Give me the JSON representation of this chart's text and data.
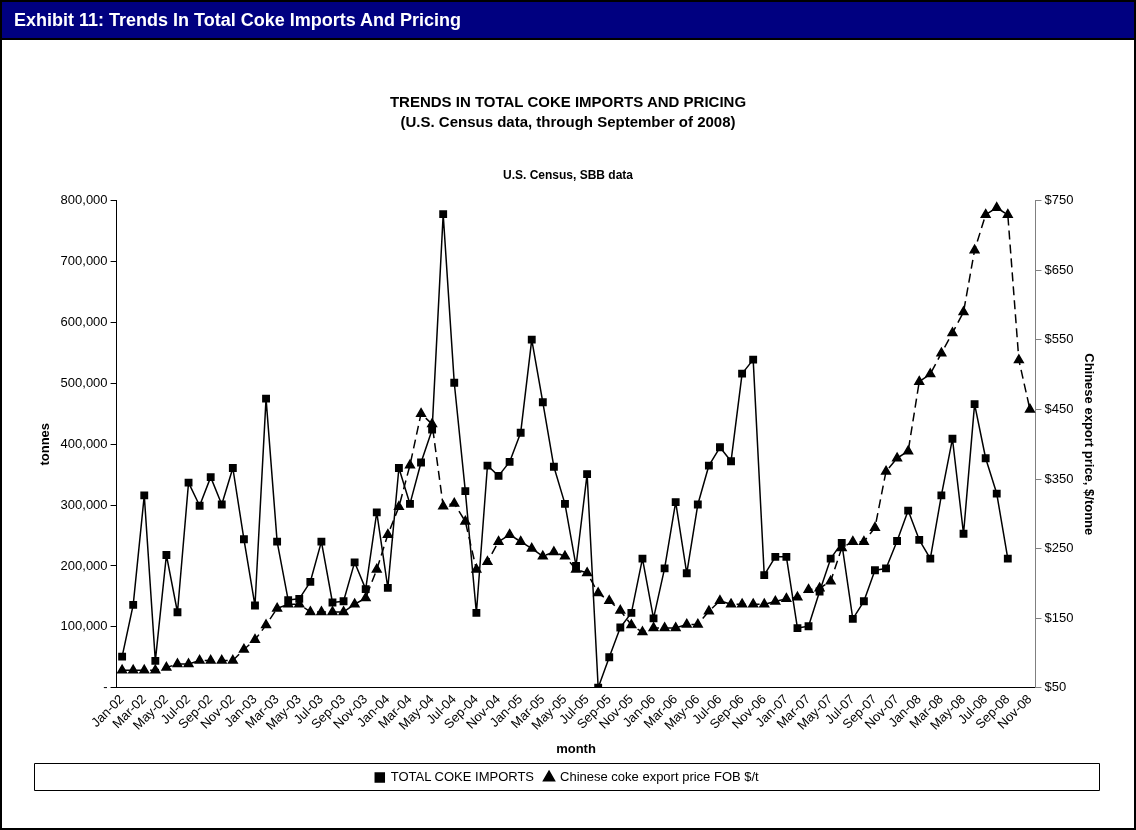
{
  "chart_data": {
    "type": "line",
    "title": "Exhibit 11: Trends In Total Coke Imports And Pricing",
    "subtitle": "TRENDS IN TOTAL COKE IMPORTS AND PRICING\n(U.S. Census data, through September of 2008)",
    "annotations": [
      "U.S. Census, SBB data"
    ],
    "xlabel": "month",
    "ylabel": "tonnes",
    "y2label": "Chinese export price, $/tonne",
    "categories": [
      "Jan-02",
      null,
      "Mar-02",
      null,
      "May-02",
      null,
      "Jul-02",
      null,
      "Sep-02",
      null,
      "Nov-02",
      null,
      "Jan-03",
      null,
      "Mar-03",
      null,
      "May-03",
      null,
      "Jul-03",
      null,
      "Sep-03",
      null,
      "Nov-03",
      null,
      "Jan-04",
      null,
      "Mar-04",
      null,
      "May-04",
      null,
      "Jul-04",
      null,
      "Sep-04",
      null,
      "Nov-04",
      null,
      "Jan-05",
      null,
      "Mar-05",
      null,
      "May-05",
      null,
      "Jul-05",
      null,
      "Sep-05",
      null,
      "Nov-05",
      null,
      "Jan-06",
      null,
      "Mar-06",
      null,
      "May-06",
      null,
      "Jul-06",
      null,
      "Sep-06",
      null,
      "Nov-06",
      null,
      "Jan-07",
      null,
      "Mar-07",
      null,
      "May-07",
      null,
      "Jul-07",
      null,
      "Sep-07",
      null,
      "Nov-07",
      null,
      "Jan-08",
      null,
      "Mar-08",
      null,
      "May-08",
      null,
      "Jul-08",
      null,
      "Sep-08",
      null,
      "Nov-08"
    ],
    "series": [
      {
        "name": "TOTAL COKE IMPORTS",
        "color": "#000000",
        "marker": "square",
        "line_style": "solid",
        "values": [
          51000,
          136000,
          316000,
          44000,
          218000,
          124000,
          337000,
          299000,
          346000,
          301000,
          361000,
          244000,
          135000,
          475000,
          240000,
          144000,
          146000,
          174000,
          240000,
          140000,
          142000,
          206000,
          162000,
          288000,
          164000,
          361000,
          302000,
          370000,
          424000,
          778000,
          501000,
          323000,
          123000,
          365000,
          348000,
          371000,
          419000,
          572000,
          469000,
          363000,
          302000,
          200000,
          351000,
          0,
          50000,
          99000,
          123000,
          212000,
          114000,
          196000,
          305000,
          188000,
          301000,
          365000,
          395000,
          372000,
          516000,
          539000,
          185000,
          215000,
          215000,
          98000,
          101000,
          158000,
          212000,
          238000,
          113000,
          142000,
          193000,
          196000,
          241000,
          291000,
          243000,
          212000,
          316000,
          409000,
          253000,
          466000,
          377000,
          319000,
          212000,
          null,
          null
        ]
      },
      {
        "name": "Chinese coke export price FOB $/t",
        "color": "#000000",
        "marker": "triangle",
        "line_style": "dashed",
        "axis": "y2",
        "values": [
          75,
          75,
          75,
          75,
          79,
          84,
          84,
          89,
          89,
          89,
          89,
          105,
          119,
          140,
          164,
          170,
          170,
          159,
          159,
          159,
          159,
          170,
          179,
          220,
          270,
          310,
          370,
          444,
          429,
          311,
          315,
          289,
          220,
          231,
          260,
          270,
          260,
          250,
          239,
          245,
          239,
          220,
          215,
          186,
          175,
          161,
          140,
          130,
          136,
          136,
          136,
          141,
          141,
          160,
          175,
          170,
          170,
          170,
          170,
          174,
          178,
          180,
          191,
          193,
          203,
          251,
          260,
          260,
          280,
          361,
          380,
          390,
          490,
          501,
          531,
          560,
          590,
          679,
          730,
          740,
          730,
          521,
          450
        ]
      }
    ],
    "ylim": [
      0,
      800000
    ],
    "yticks": [
      {
        "value": 0,
        "label": "-"
      },
      {
        "value": 100000,
        "label": "100,000"
      },
      {
        "value": 200000,
        "label": "200,000"
      },
      {
        "value": 300000,
        "label": "300,000"
      },
      {
        "value": 400000,
        "label": "400,000"
      },
      {
        "value": 500000,
        "label": "500,000"
      },
      {
        "value": 600000,
        "label": "600,000"
      },
      {
        "value": 700000,
        "label": "700,000"
      },
      {
        "value": 800000,
        "label": "800,000"
      }
    ],
    "y2lim": [
      50,
      750
    ],
    "y2ticks": [
      {
        "value": 50,
        "label": "$50"
      },
      {
        "value": 150,
        "label": "$150"
      },
      {
        "value": 250,
        "label": "$250"
      },
      {
        "value": 350,
        "label": "$350"
      },
      {
        "value": 450,
        "label": "$450"
      },
      {
        "value": 550,
        "label": "$550"
      },
      {
        "value": 650,
        "label": "$650"
      },
      {
        "value": 750,
        "label": "$750"
      }
    ],
    "grid": false,
    "legend": "bottom"
  }
}
